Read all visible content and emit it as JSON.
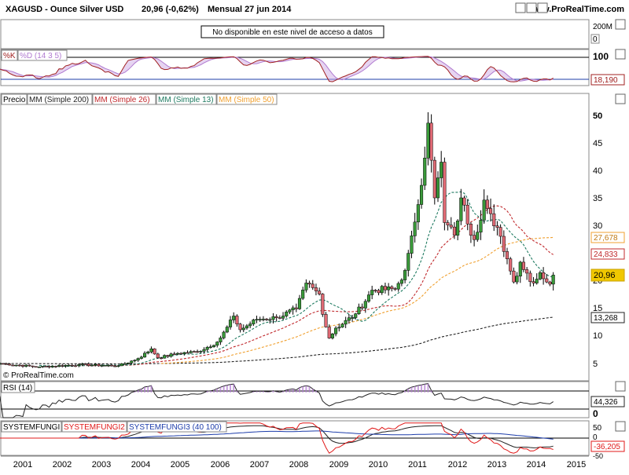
{
  "header": {
    "symbol": "XAGUSD - Ounce Silver USD",
    "quote": "20,96 (-0,62%)",
    "period": "Mensual  27 jun 2014",
    "site": "www.ProRealTime.com"
  },
  "volume": {
    "notice": "No disponible en este nivel de acceso a datos",
    "top_label": "200M",
    "zero_label": "0"
  },
  "colors": {
    "up": "#3a9a3a",
    "down": "#e06a74",
    "kline": "#a02020",
    "dline": "#c8a0e0",
    "ma200": "#222222",
    "ma26": "#c0282c",
    "ma13": "#1e7a60",
    "ma50": "#f0a030",
    "rsi": "#222222",
    "fungi1": "#222222",
    "fungi2": "#e01818",
    "fungi3": "#1c3caa",
    "price_box": "#f0c800",
    "frame": "#000000",
    "grid": "#cfcfcf"
  },
  "stoch": {
    "label_k": "%K",
    "label_d": "%D (14 3 5)",
    "axis_top": "100",
    "value": "18,190"
  },
  "price": {
    "legend": [
      "Precio",
      "MM (Simple 200)",
      "MM (Simple 26)",
      "MM (Simple 13)",
      "MM (Simple 50)"
    ],
    "y_ticks": [
      "5",
      "10",
      "15",
      "20",
      "25",
      "30",
      "35",
      "40",
      "45",
      "50"
    ],
    "tags": {
      "ma50": "27,678",
      "ma26": "24,833",
      "last": "20,96",
      "ma200": "13,268"
    },
    "copyright": "© ProRealTime.com"
  },
  "rsi": {
    "label": "RSI (14)",
    "value": "44,326",
    "axis_zero": "0"
  },
  "fungi": {
    "label1": "SYSTEMFUNGI",
    "label2": "SYSTEMFUNGI2",
    "label3": "SYSTEMFUNGI3 (40 100)",
    "axis_50": "50",
    "axis_0": "0",
    "value": "-36,205",
    "axis_neg50": "-50"
  },
  "x_ticks": [
    "2001",
    "2002",
    "2003",
    "2004",
    "2005",
    "2006",
    "2007",
    "2008",
    "2009",
    "2010",
    "2011",
    "2012",
    "2013",
    "2014",
    "2015"
  ],
  "chart_data": {
    "type": "candlestick",
    "title": "XAGUSD - Ounce Silver USD",
    "period": "Monthly",
    "x_range": [
      "2000-06",
      "2015-01"
    ],
    "y_range": [
      2,
      54
    ],
    "y_scale": "logarithmic",
    "last_close": 20.96,
    "change_pct": -0.62,
    "moving_averages": {
      "MM (Simple 200)": 13.268,
      "MM (Simple 26)": 24.833,
      "MM (Simple 50)": 27.678
    },
    "close_anchors": [
      [
        "2000-06",
        5.0
      ],
      [
        "2001-06",
        4.4
      ],
      [
        "2002-06",
        4.8
      ],
      [
        "2003-06",
        4.6
      ],
      [
        "2003-12",
        5.9
      ],
      [
        "2004-04",
        7.6
      ],
      [
        "2004-06",
        6.0
      ],
      [
        "2004-12",
        6.8
      ],
      [
        "2005-06",
        7.1
      ],
      [
        "2005-12",
        8.8
      ],
      [
        "2006-05",
        13.5
      ],
      [
        "2006-07",
        11.0
      ],
      [
        "2006-12",
        12.9
      ],
      [
        "2007-06",
        13.2
      ],
      [
        "2007-12",
        14.8
      ],
      [
        "2008-03",
        19.5
      ],
      [
        "2008-07",
        17.5
      ],
      [
        "2008-10",
        9.5
      ],
      [
        "2008-12",
        11.3
      ],
      [
        "2009-06",
        13.9
      ],
      [
        "2009-11",
        18.2
      ],
      [
        "2010-06",
        18.4
      ],
      [
        "2010-09",
        21.8
      ],
      [
        "2010-12",
        30.6
      ],
      [
        "2011-04",
        48.6
      ],
      [
        "2011-06",
        35.0
      ],
      [
        "2011-08",
        41.5
      ],
      [
        "2011-09",
        30.5
      ],
      [
        "2011-12",
        28.2
      ],
      [
        "2012-02",
        35.0
      ],
      [
        "2012-06",
        27.4
      ],
      [
        "2012-09",
        34.6
      ],
      [
        "2012-12",
        29.9
      ],
      [
        "2013-02",
        28.0
      ],
      [
        "2013-04",
        23.9
      ],
      [
        "2013-06",
        19.7
      ],
      [
        "2013-08",
        23.3
      ],
      [
        "2013-12",
        19.5
      ],
      [
        "2014-02",
        21.4
      ],
      [
        "2014-05",
        19.3
      ],
      [
        "2014-06",
        20.96
      ]
    ],
    "stochastic": {
      "K_last": 18.19,
      "range": [
        0,
        100
      ]
    },
    "rsi_14": {
      "last": 44.326,
      "range": [
        0,
        100
      ]
    },
    "systemfungi": {
      "last": -36.205,
      "range": [
        -50,
        50
      ]
    }
  }
}
